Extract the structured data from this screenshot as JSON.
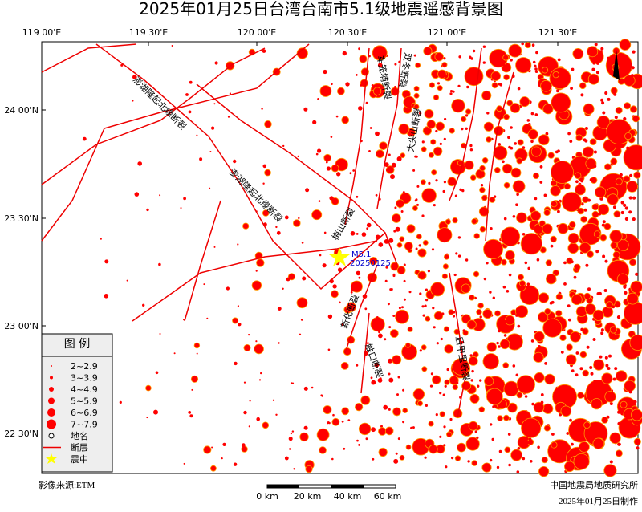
{
  "title": "2025年01月25日台湾台南市5.1级地震遥感背景图",
  "lon_labels": [
    "119 00'E",
    "119 30'E",
    "120 00'E",
    "120 30'E",
    "121 00'E",
    "121 30'E"
  ],
  "lat_labels": [
    "24 00'N",
    "23 30'N",
    "23 00'N",
    "22 30'N"
  ],
  "legend": {
    "title": "图  例",
    "items": [
      "2~2.9",
      "3~3.9",
      "4~4.9",
      "5~5.9",
      "6~6.9",
      "7~7.9",
      "地名",
      "断层",
      "震中"
    ]
  },
  "epicenter": {
    "magnitude": "M5.1",
    "date": "20250125"
  },
  "faults": [
    "澎湖隆起北缘断裂",
    "澎湖隆起北缘断裂",
    "车笼埔断裂",
    "双冬断裂",
    "梅山断裂",
    "大尖山断裂",
    "触口断裂",
    "新化断裂",
    "后甲里断裂"
  ],
  "source": "影像来源:ETM",
  "scale": [
    "0 km",
    "20 km",
    "40 km",
    "60 km"
  ],
  "org": "中国地震局地质研究所",
  "made": "2025年01月25日制作"
}
